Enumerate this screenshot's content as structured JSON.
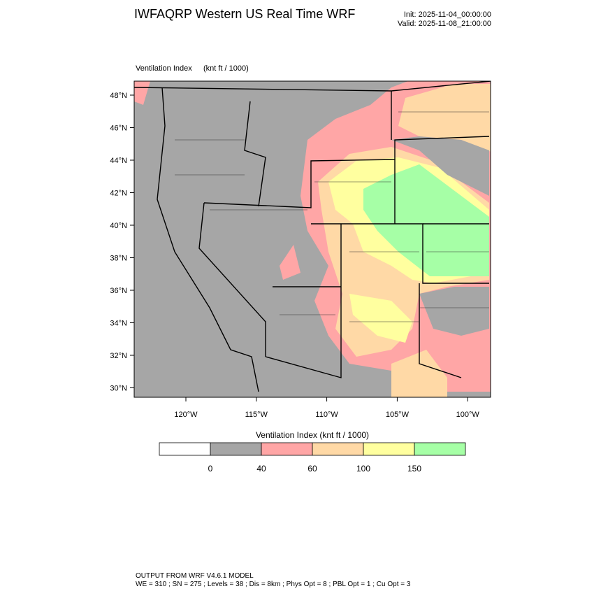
{
  "header": {
    "title": "IWFAQRP Western US Real Time WRF",
    "init": "Init: 2025-11-04_00:00:00",
    "valid": "Valid: 2025-11-08_21:00:00"
  },
  "map": {
    "field": "Ventilation Index",
    "units": "(knt ft / 1000)",
    "lat_labels": [
      "48°N",
      "46°N",
      "44°N",
      "42°N",
      "40°N",
      "38°N",
      "36°N",
      "34°N",
      "32°N",
      "30°N"
    ],
    "lon_labels": [
      "120°W",
      "115°W",
      "110°W",
      "105°W",
      "100°W"
    ]
  },
  "colorbar": {
    "title": "Ventilation Index  (knt ft / 1000)",
    "colors": [
      "#ffffff",
      "#a6a6a6",
      "#ffa6a6",
      "#ffd9a6",
      "#ffff9f",
      "#a6ffa6"
    ],
    "labels": [
      0,
      40,
      60,
      100,
      150
    ]
  },
  "footer": {
    "line1": "OUTPUT FROM WRF V4.6.1 MODEL",
    "line2": "WE = 310 ; SN = 275 ; Levels = 38 ; Dis = 8km ; Phys Opt = 8 ; PBL Opt = 1 ; Cu Opt = 3"
  }
}
